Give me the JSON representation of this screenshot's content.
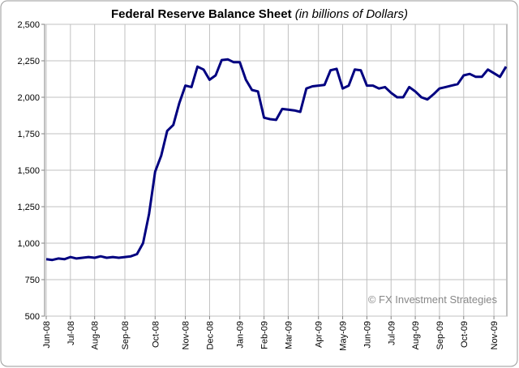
{
  "chart_data": {
    "type": "line",
    "title": "Federal Reserve Balance Sheet",
    "subtitle": "(in billions of Dollars)",
    "annotation": "© FX Investment Strategies",
    "categories": [
      "Jun-08",
      null,
      null,
      null,
      "Jul-08",
      null,
      null,
      null,
      "Aug-08",
      null,
      null,
      null,
      null,
      "Sep-08",
      null,
      null,
      null,
      null,
      "Oct-08",
      null,
      null,
      null,
      null,
      "Nov-08",
      null,
      null,
      null,
      "Dec-08",
      null,
      null,
      null,
      null,
      "Jan-09",
      null,
      null,
      null,
      "Feb-09",
      null,
      null,
      null,
      "Mar-09",
      null,
      null,
      null,
      null,
      "Apr-09",
      null,
      null,
      null,
      "May-09",
      null,
      null,
      null,
      "Jun-09",
      null,
      null,
      null,
      "Jul-09",
      null,
      null,
      null,
      "Aug-09",
      null,
      null,
      null,
      "Sep-09",
      null,
      null,
      null,
      "Oct-09",
      null,
      null,
      null,
      null,
      "Nov-09",
      null,
      null
    ],
    "values": [
      890,
      885,
      895,
      890,
      905,
      895,
      900,
      905,
      900,
      910,
      900,
      905,
      900,
      905,
      910,
      925,
      1000,
      1200,
      1490,
      1600,
      1770,
      1810,
      1960,
      2080,
      2070,
      2210,
      2190,
      2120,
      2150,
      2255,
      2260,
      2240,
      2240,
      2120,
      2050,
      2040,
      1860,
      1850,
      1845,
      1920,
      1915,
      1910,
      1900,
      2060,
      2075,
      2080,
      2085,
      2185,
      2195,
      2060,
      2080,
      2190,
      2185,
      2080,
      2080,
      2060,
      2070,
      2030,
      2000,
      2000,
      2070,
      2040,
      2000,
      1985,
      2020,
      2060,
      2070,
      2080,
      2090,
      2150,
      2160,
      2140,
      2140,
      2190,
      2165,
      2140,
      2210
    ],
    "color": "#000080",
    "ylim": [
      500,
      2500
    ],
    "yticks": [
      {
        "value": 500,
        "label": "500"
      },
      {
        "value": 750,
        "label": "750"
      },
      {
        "value": 1000,
        "label": "1,000"
      },
      {
        "value": 1250,
        "label": "1,250"
      },
      {
        "value": 1500,
        "label": "1,500"
      },
      {
        "value": 1750,
        "label": "1,750"
      },
      {
        "value": 2000,
        "label": "2,000"
      },
      {
        "value": 2250,
        "label": "2,250"
      },
      {
        "value": 2500,
        "label": "2,500"
      }
    ],
    "grid": true
  }
}
